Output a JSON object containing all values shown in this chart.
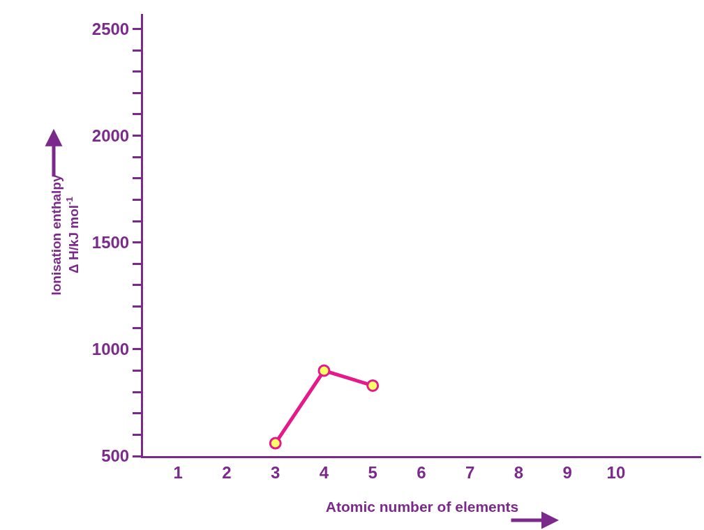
{
  "chart_data": {
    "type": "line",
    "xlabel": "Atomic number of elements",
    "ylabel": "Ionisation enthalpy\nΔ H/kJ mol$^{-1}$",
    "x": [
      3,
      4,
      5
    ],
    "series": [
      {
        "color": "#e5198a",
        "colors": [
          "#ffff66",
          "#ffff66",
          "#ffff66"
        ],
        "values": [
          560,
          900,
          830
        ]
      }
    ],
    "xlim": [
      0.28,
      11.75
    ],
    "xticks": [
      1,
      2,
      3,
      4,
      5,
      6,
      7,
      8,
      9,
      10
    ],
    "ylim": [
      500,
      2570
    ],
    "yticks": [
      500,
      {
        "value": 600,
        "label": null
      },
      {
        "value": 700,
        "label": null
      },
      {
        "value": 800,
        "label": null
      },
      {
        "value": 900,
        "label": null
      },
      1000,
      {
        "value": 1100,
        "label": null
      },
      {
        "value": 1200,
        "label": null
      },
      {
        "value": 1300,
        "label": null
      },
      {
        "value": 1400,
        "label": null
      },
      1500,
      {
        "value": 1600,
        "label": null
      },
      {
        "value": 1700,
        "label": null
      },
      {
        "value": 1800,
        "label": null
      },
      {
        "value": 1900,
        "label": null
      },
      2000,
      {
        "value": 2100,
        "label": null
      },
      {
        "value": 2200,
        "label": null
      },
      {
        "value": 2300,
        "label": null
      },
      {
        "value": 2400,
        "label": null
      },
      2500
    ],
    "marker": "circle",
    "line_style": "solid"
  }
}
